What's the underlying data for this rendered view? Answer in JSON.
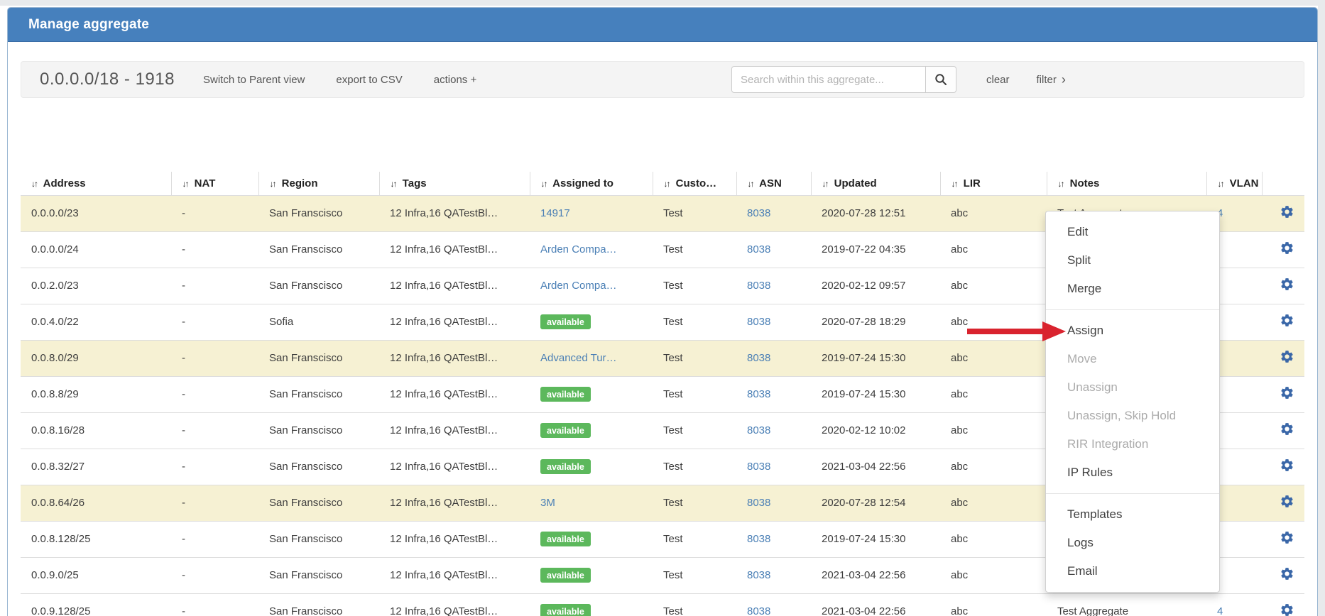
{
  "page": {
    "title": "Manage aggregate"
  },
  "toolbar": {
    "aggregate_label": "0.0.0.0/18 - 1918",
    "switch_view_label": "Switch to Parent view",
    "export_label": "export to CSV",
    "actions_label": "actions +",
    "search_placeholder": "Search within this aggregate...",
    "clear_label": "clear",
    "filter_label": "filter"
  },
  "table": {
    "columns": [
      "Address",
      "NAT",
      "Region",
      "Tags",
      "Assigned to",
      "Custo…",
      "ASN",
      "Updated",
      "LIR",
      "Notes",
      "VLAN"
    ],
    "rows": [
      {
        "address": "0.0.0.0/23",
        "nat": "-",
        "region": "San Franscisco",
        "tags": "12 Infra,16 QATestBl…",
        "assigned": {
          "type": "link",
          "text": "14917"
        },
        "customer": "Test",
        "asn": "8038",
        "updated": "2020-07-28 12:51",
        "lir": "abc",
        "notes": "Test Aggregate",
        "vlan": "4",
        "highlight": true
      },
      {
        "address": "0.0.0.0/24",
        "nat": "-",
        "region": "San Franscisco",
        "tags": "12 Infra,16 QATestBl…",
        "assigned": {
          "type": "link",
          "text": "Arden Compa…"
        },
        "customer": "Test",
        "asn": "8038",
        "updated": "2019-07-22 04:35",
        "lir": "abc",
        "notes": "",
        "vlan": "",
        "highlight": false
      },
      {
        "address": "0.0.2.0/23",
        "nat": "-",
        "region": "San Franscisco",
        "tags": "12 Infra,16 QATestBl…",
        "assigned": {
          "type": "link",
          "text": "Arden Compa…"
        },
        "customer": "Test",
        "asn": "8038",
        "updated": "2020-02-12 09:57",
        "lir": "abc",
        "notes": "",
        "vlan": "",
        "highlight": false
      },
      {
        "address": "0.0.4.0/22",
        "nat": "-",
        "region": "Sofia",
        "tags": "12 Infra,16 QATestBl…",
        "assigned": {
          "type": "badge",
          "text": "available"
        },
        "customer": "Test",
        "asn": "8038",
        "updated": "2020-07-28 18:29",
        "lir": "abc",
        "notes": "",
        "vlan": "",
        "highlight": false
      },
      {
        "address": "0.0.8.0/29",
        "nat": "-",
        "region": "San Franscisco",
        "tags": "12 Infra,16 QATestBl…",
        "assigned": {
          "type": "link",
          "text": "Advanced Tur…"
        },
        "customer": "Test",
        "asn": "8038",
        "updated": "2019-07-24 15:30",
        "lir": "abc",
        "notes": "",
        "vlan": "",
        "highlight": true
      },
      {
        "address": "0.0.8.8/29",
        "nat": "-",
        "region": "San Franscisco",
        "tags": "12 Infra,16 QATestBl…",
        "assigned": {
          "type": "badge",
          "text": "available"
        },
        "customer": "Test",
        "asn": "8038",
        "updated": "2019-07-24 15:30",
        "lir": "abc",
        "notes": "",
        "vlan": "",
        "highlight": false
      },
      {
        "address": "0.0.8.16/28",
        "nat": "-",
        "region": "San Franscisco",
        "tags": "12 Infra,16 QATestBl…",
        "assigned": {
          "type": "badge",
          "text": "available"
        },
        "customer": "Test",
        "asn": "8038",
        "updated": "2020-02-12 10:02",
        "lir": "abc",
        "notes": "",
        "vlan": "",
        "highlight": false
      },
      {
        "address": "0.0.8.32/27",
        "nat": "-",
        "region": "San Franscisco",
        "tags": "12 Infra,16 QATestBl…",
        "assigned": {
          "type": "badge",
          "text": "available"
        },
        "customer": "Test",
        "asn": "8038",
        "updated": "2021-03-04 22:56",
        "lir": "abc",
        "notes": "",
        "vlan": "",
        "highlight": false
      },
      {
        "address": "0.0.8.64/26",
        "nat": "-",
        "region": "San Franscisco",
        "tags": "12 Infra,16 QATestBl…",
        "assigned": {
          "type": "link",
          "text": "3M"
        },
        "customer": "Test",
        "asn": "8038",
        "updated": "2020-07-28 12:54",
        "lir": "abc",
        "notes": "",
        "vlan": "",
        "highlight": true
      },
      {
        "address": "0.0.8.128/25",
        "nat": "-",
        "region": "San Franscisco",
        "tags": "12 Infra,16 QATestBl…",
        "assigned": {
          "type": "badge",
          "text": "available"
        },
        "customer": "Test",
        "asn": "8038",
        "updated": "2019-07-24 15:30",
        "lir": "abc",
        "notes": "",
        "vlan": "",
        "highlight": false
      },
      {
        "address": "0.0.9.0/25",
        "nat": "-",
        "region": "San Franscisco",
        "tags": "12 Infra,16 QATestBl…",
        "assigned": {
          "type": "badge",
          "text": "available"
        },
        "customer": "Test",
        "asn": "8038",
        "updated": "2021-03-04 22:56",
        "lir": "abc",
        "notes": "",
        "vlan": "",
        "highlight": false
      },
      {
        "address": "0.0.9.128/25",
        "nat": "-",
        "region": "San Franscisco",
        "tags": "12 Infra,16 QATestBl…",
        "assigned": {
          "type": "badge",
          "text": "available"
        },
        "customer": "Test",
        "asn": "8038",
        "updated": "2021-03-04 22:56",
        "lir": "abc",
        "notes": "Test Aggregate",
        "vlan": "4",
        "highlight": false
      }
    ]
  },
  "context_menu": {
    "items": [
      {
        "label": "Edit",
        "enabled": true
      },
      {
        "label": "Split",
        "enabled": true
      },
      {
        "label": "Merge",
        "enabled": true
      },
      {
        "divider": true
      },
      {
        "label": "Assign",
        "enabled": true
      },
      {
        "label": "Move",
        "enabled": false
      },
      {
        "label": "Unassign",
        "enabled": false
      },
      {
        "label": "Unassign, Skip Hold",
        "enabled": false
      },
      {
        "label": "RIR Integration",
        "enabled": false
      },
      {
        "label": "IP Rules",
        "enabled": true
      },
      {
        "divider": true
      },
      {
        "label": "Templates",
        "enabled": true
      },
      {
        "label": "Logs",
        "enabled": true
      },
      {
        "label": "Email",
        "enabled": true
      }
    ]
  },
  "annotation": {
    "points_to": "Assign"
  },
  "colors": {
    "header_blue": "#4680bd",
    "link_blue": "#4a7fb5",
    "badge_green": "#5cb85c",
    "row_highlight": "#f6f1d3",
    "gear_blue": "#3a67a8",
    "arrow_red": "#d9232e"
  }
}
